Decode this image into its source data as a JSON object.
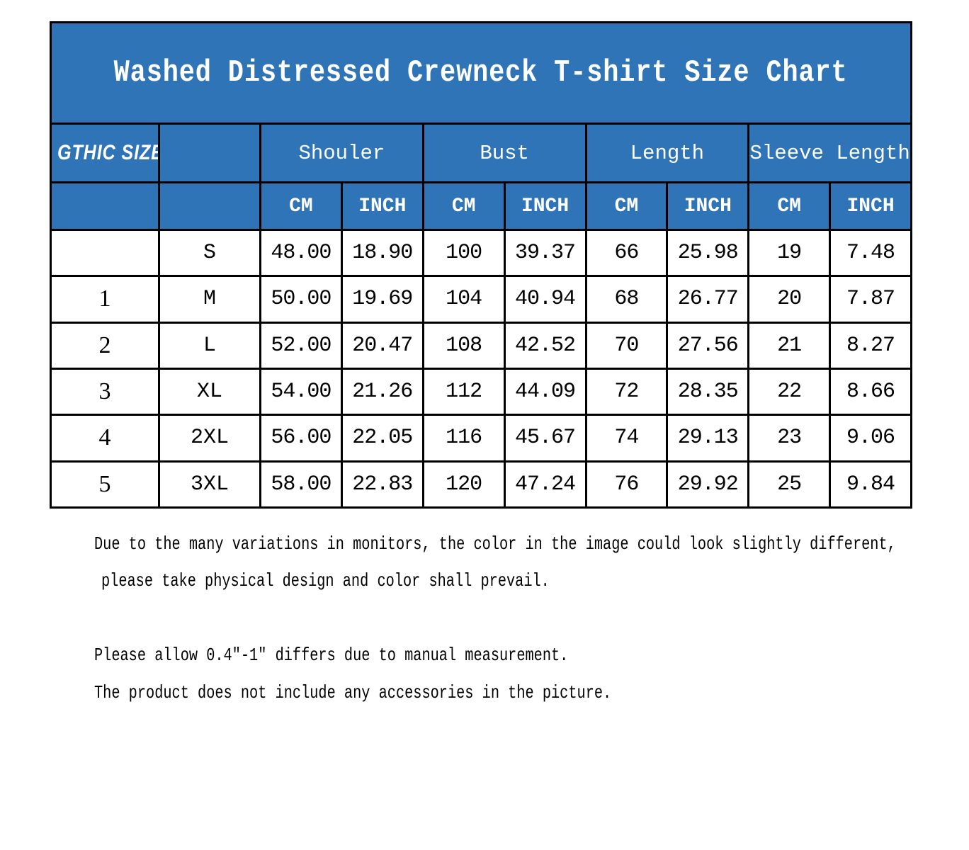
{
  "colors": {
    "table_blue": "#3074b8",
    "border_black": "#000000",
    "header_text_white": "#ffffff",
    "body_text_black": "#000000"
  },
  "chart_data": {
    "type": "table",
    "title": "Washed Distressed Crewneck T-shirt Size Chart",
    "corner_label": "GTHIC SIZE",
    "column_groups": [
      {
        "label": "Shouler",
        "units": [
          "CM",
          "INCH"
        ]
      },
      {
        "label": "Bust",
        "units": [
          "CM",
          "INCH"
        ]
      },
      {
        "label": "Length",
        "units": [
          "CM",
          "INCH"
        ]
      },
      {
        "label": "Sleeve Length",
        "units": [
          "CM",
          "INCH"
        ]
      }
    ],
    "rows": [
      {
        "index": "",
        "size": "S",
        "shoulder_cm": "48.00",
        "shoulder_inch": "18.90",
        "bust_cm": "100",
        "bust_inch": "39.37",
        "length_cm": "66",
        "length_inch": "25.98",
        "sleeve_cm": "19",
        "sleeve_inch": "7.48"
      },
      {
        "index": "1",
        "size": "M",
        "shoulder_cm": "50.00",
        "shoulder_inch": "19.69",
        "bust_cm": "104",
        "bust_inch": "40.94",
        "length_cm": "68",
        "length_inch": "26.77",
        "sleeve_cm": "20",
        "sleeve_inch": "7.87"
      },
      {
        "index": "2",
        "size": "L",
        "shoulder_cm": "52.00",
        "shoulder_inch": "20.47",
        "bust_cm": "108",
        "bust_inch": "42.52",
        "length_cm": "70",
        "length_inch": "27.56",
        "sleeve_cm": "21",
        "sleeve_inch": "8.27"
      },
      {
        "index": "3",
        "size": "XL",
        "shoulder_cm": "54.00",
        "shoulder_inch": "21.26",
        "bust_cm": "112",
        "bust_inch": "44.09",
        "length_cm": "72",
        "length_inch": "28.35",
        "sleeve_cm": "22",
        "sleeve_inch": "8.66"
      },
      {
        "index": "4",
        "size": "2XL",
        "shoulder_cm": "56.00",
        "shoulder_inch": "22.05",
        "bust_cm": "116",
        "bust_inch": "45.67",
        "length_cm": "74",
        "length_inch": "29.13",
        "sleeve_cm": "23",
        "sleeve_inch": "9.06"
      },
      {
        "index": "5",
        "size": "3XL",
        "shoulder_cm": "58.00",
        "shoulder_inch": "22.83",
        "bust_cm": "120",
        "bust_inch": "47.24",
        "length_cm": "76",
        "length_inch": "29.92",
        "sleeve_cm": "25",
        "sleeve_inch": "9.84"
      }
    ]
  },
  "notes": [
    "Due to the many variations in monitors, the color in the image could look slightly different,",
    "please take physical design and color shall prevail.",
    "Please allow 0.4\"-1\" differs due to manual measurement.",
    "The product does not include any accessories in the picture."
  ]
}
